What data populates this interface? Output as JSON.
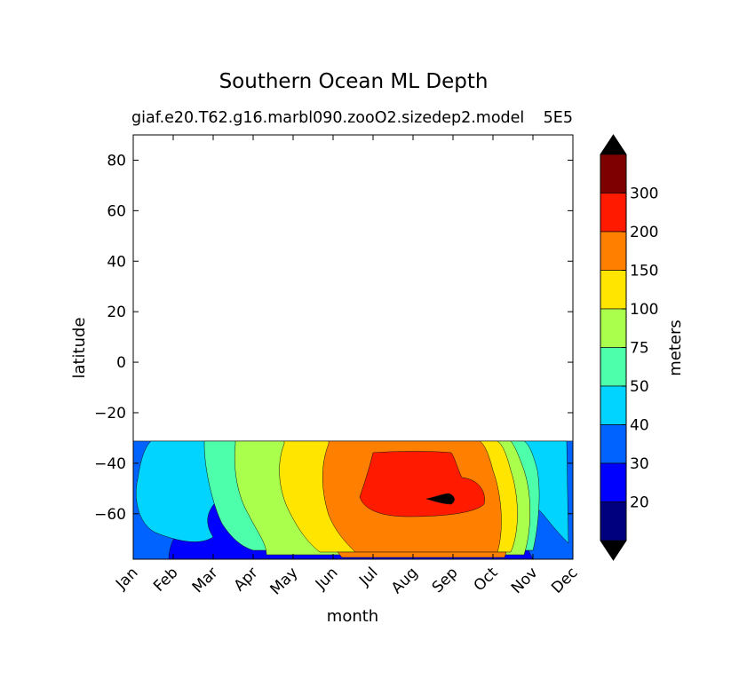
{
  "chart_data": {
    "type": "heatmap",
    "title": "Southern Ocean ML Depth",
    "subtitle": "giaf.e20.T62.g16.marbl090.zooO2.sizedep2.model",
    "subtitle_overlap": "5E5",
    "xlabel": "month",
    "ylabel": "latitude",
    "months": [
      "Jan",
      "Feb",
      "Mar",
      "Apr",
      "May",
      "Jun",
      "Jul",
      "Aug",
      "Sep",
      "Oct",
      "Nov",
      "Dec"
    ],
    "yticks": [
      80,
      60,
      40,
      20,
      0,
      -20,
      -40,
      -60
    ],
    "ytick_labels": [
      "80",
      "60",
      "40",
      "20",
      "0",
      "−20",
      "−40",
      "−60"
    ],
    "ylim": [
      -78,
      90
    ],
    "data_lat_range": [
      -78,
      -32
    ],
    "colorbar": {
      "label": "meters",
      "levels": [
        "20",
        "30",
        "40",
        "50",
        "75",
        "100",
        "150",
        "200",
        "300"
      ],
      "colors": [
        "#00007f",
        "#0000ff",
        "#0063ff",
        "#00d4ff",
        "#4dffaa",
        "#aaff4d",
        "#ffe500",
        "#ff7f00",
        "#ff1a00",
        "#7f0000"
      ],
      "extend": "both"
    },
    "bands": [
      {
        "level": "<20",
        "color": "#00007f"
      },
      {
        "level": "20-30",
        "color": "#0000ff"
      },
      {
        "level": "30-40",
        "color": "#0063ff"
      },
      {
        "level": "40-50",
        "color": "#00d4ff"
      },
      {
        "level": "50-75",
        "color": "#4dffaa"
      },
      {
        "level": "75-100",
        "color": "#aaff4d"
      },
      {
        "level": "100-150",
        "color": "#ffe500"
      },
      {
        "level": "150-200",
        "color": "#ff7f00"
      },
      {
        "level": "200-300",
        "color": "#ff1a00"
      }
    ]
  }
}
